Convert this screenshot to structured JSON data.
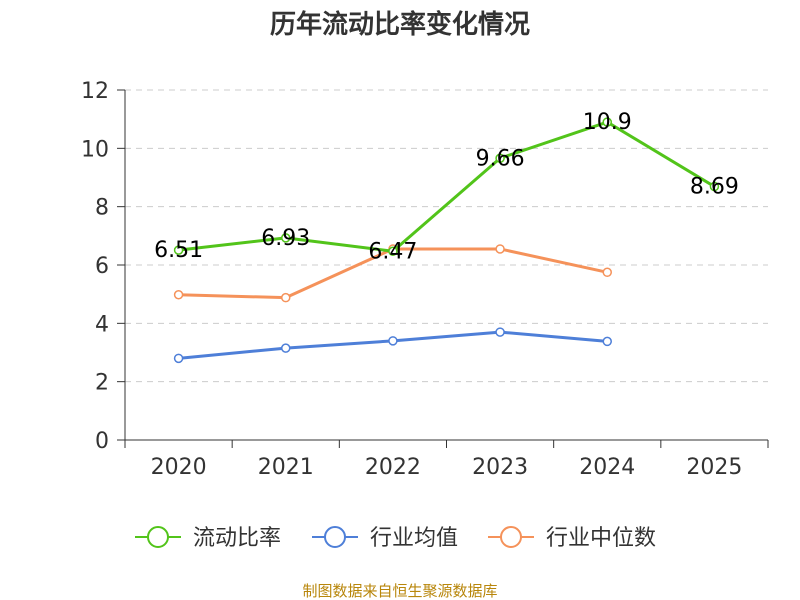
{
  "chart_data": {
    "type": "line",
    "title": "历年流动比率变化情况",
    "categories": [
      "2020",
      "2021",
      "2022",
      "2023",
      "2024",
      "2025"
    ],
    "ylim": [
      0,
      12
    ],
    "yticks": [
      0,
      2,
      4,
      6,
      8,
      10,
      12
    ],
    "grid": true,
    "legend_position": "bottom",
    "series": [
      {
        "name": "流动比率",
        "color": "#52c41a",
        "values": [
          6.51,
          6.93,
          6.47,
          9.66,
          10.9,
          8.69
        ],
        "labels": [
          "6.51",
          "6.93",
          "6.47",
          "9.66",
          "10.9",
          "8.69"
        ],
        "show_labels": true
      },
      {
        "name": "行业均值",
        "color": "#4e7fd8",
        "values": [
          2.8,
          3.15,
          3.4,
          3.7,
          3.38,
          null
        ],
        "show_labels": false
      },
      {
        "name": "行业中位数",
        "color": "#f5925a",
        "values": [
          4.98,
          4.88,
          6.55,
          6.55,
          5.75,
          null
        ],
        "show_labels": false
      }
    ],
    "source": "制图数据来自恒生聚源数据库"
  }
}
